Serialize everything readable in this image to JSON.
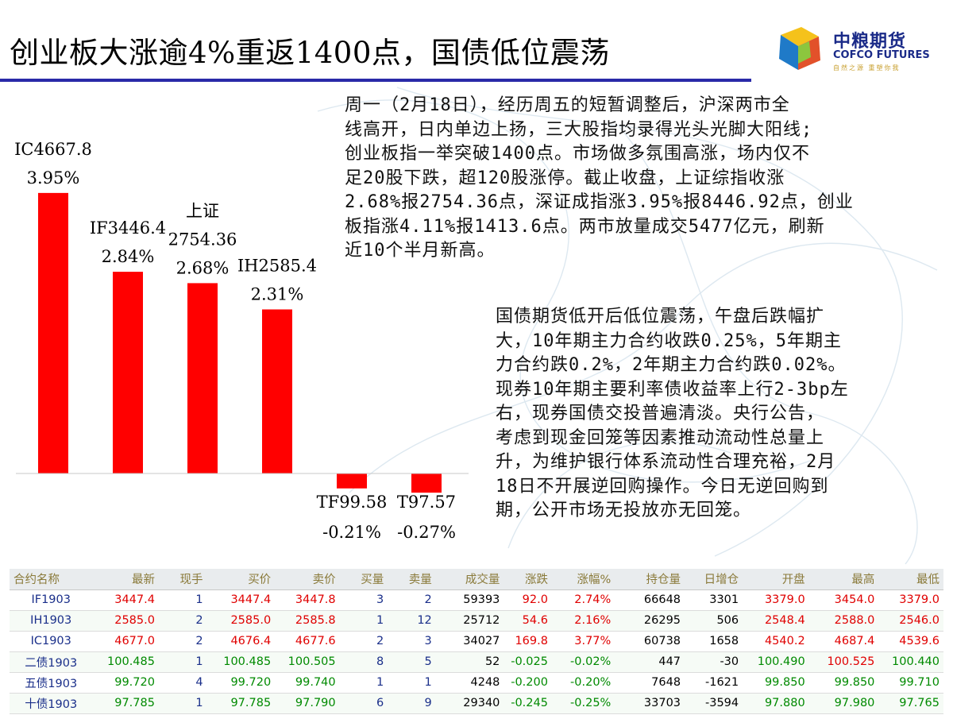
{
  "header": {
    "title": "创业板大涨逾4%重返1400点，国债低位震荡",
    "logo": {
      "cn": "中粮期货",
      "en": "COFCO FUTURES",
      "slogan": "自然之源 重塑你我"
    }
  },
  "colors": {
    "bar": "#ff0000",
    "rule": "#2a2aa8",
    "up": "#e00000",
    "down": "#008a00",
    "name": "#1a2f8a"
  },
  "chart_data": {
    "type": "bar",
    "title": "",
    "xlabel": "",
    "ylabel": "",
    "categories": [
      "IC4667.8",
      "IF3446.4",
      "上证 2754.36",
      "IH2585.4",
      "TF99.58",
      "T97.57"
    ],
    "label_lines": [
      [
        "IC4667.8",
        "3.95%"
      ],
      [
        "IF3446.4",
        "2.84%"
      ],
      [
        "上证",
        "2754.36",
        "2.68%"
      ],
      [
        "IH2585.4",
        "2.31%"
      ],
      [
        "TF99.58",
        "-0.21%"
      ],
      [
        "T97.57",
        "-0.27%"
      ]
    ],
    "values": [
      3.95,
      2.84,
      2.68,
      2.31,
      -0.21,
      -0.27
    ],
    "unit": "%",
    "ylim": [
      -0.5,
      4.5
    ],
    "grid": false,
    "legend": "none"
  },
  "paragraphs": [
    [
      "周一（2月18日），经历周五的短暂调整后，沪深两市全",
      "线高开，日内单边上扬，三大股指均录得光头光脚大阳线;",
      "创业板指一举突破1400点。市场做多氛围高涨，场内仅不",
      "足20股下跌，超120股涨停。截止收盘，上证综指收涨",
      "2.68%报2754.36点，深证成指涨3.95%报8446.92点，创业",
      "板指涨4.11%报1413.6点。两市放量成交5477亿元，刷新",
      "近10个半月新高。"
    ],
    [
      "国债期货低开后低位震荡，午盘后跌幅扩",
      "大，10年期主力合约收跌0.25%，5年期主",
      "力合约跌0.2%，2年期主力合约跌0.02%。",
      "现券10年期主要利率债收益率上行2-3bp左",
      "右，现券国债交投普遍清淡。央行公告，",
      "考虑到现金回笼等因素推动流动性总量上",
      "升，为维护银行体系流动性合理充裕，2月",
      "18日不开展逆回购操作。今日无逆回购到",
      "期，公开市场无投放亦无回笼。"
    ]
  ],
  "table": {
    "columns": [
      "合约名称",
      "最新",
      "现手",
      "买价",
      "卖价",
      "买量",
      "卖量",
      "成交量",
      "涨跌",
      "涨幅%",
      "持仓量",
      "日增仓",
      "开盘",
      "最高",
      "最低"
    ],
    "rows": [
      {
        "name": "IF1903",
        "trend": "up",
        "cells": [
          "3447.4",
          "1",
          "3447.4",
          "3447.8",
          "3",
          "2",
          "59393",
          "92.0",
          "2.74%",
          "66648",
          "3301",
          "3379.0",
          "3454.0",
          "3379.0"
        ]
      },
      {
        "name": "IH1903",
        "trend": "up",
        "cells": [
          "2585.0",
          "2",
          "2585.0",
          "2585.8",
          "1",
          "12",
          "25712",
          "54.6",
          "2.16%",
          "26295",
          "506",
          "2548.4",
          "2588.0",
          "2546.0"
        ]
      },
      {
        "name": "IC1903",
        "trend": "up",
        "cells": [
          "4677.0",
          "2",
          "4676.4",
          "4677.6",
          "2",
          "3",
          "34027",
          "169.8",
          "3.77%",
          "60738",
          "1658",
          "4540.2",
          "4687.4",
          "4539.6"
        ]
      },
      {
        "name": "二债1903",
        "trend": "down",
        "cells": [
          "100.485",
          "1",
          "100.485",
          "100.505",
          "8",
          "5",
          "52",
          "-0.025",
          "-0.02%",
          "447",
          "-30",
          "100.490",
          "100.525",
          "100.440"
        ]
      },
      {
        "name": "五债1903",
        "trend": "down",
        "cells": [
          "99.720",
          "4",
          "99.720",
          "99.740",
          "1",
          "1",
          "4248",
          "-0.200",
          "-0.20%",
          "7648",
          "-1621",
          "99.850",
          "99.850",
          "99.710"
        ]
      },
      {
        "name": "十债1903",
        "trend": "down",
        "cells": [
          "97.785",
          "1",
          "97.785",
          "97.790",
          "6",
          "9",
          "29340",
          "-0.245",
          "-0.25%",
          "33703",
          "-3594",
          "97.880",
          "97.980",
          "97.765"
        ]
      }
    ]
  }
}
